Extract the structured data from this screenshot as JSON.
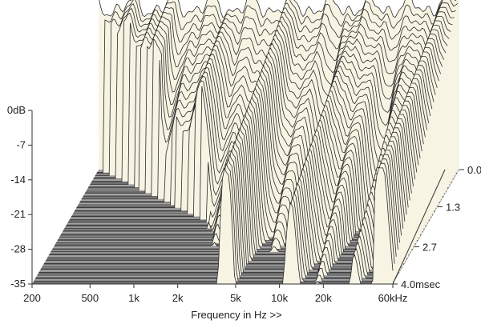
{
  "chart_data": {
    "type": "waterfall",
    "y_axis": {
      "unit": "dB",
      "ticks": [
        "0dB",
        "-7",
        "-14",
        "-21",
        "-28",
        "-35"
      ],
      "range": [
        -35,
        0
      ]
    },
    "x_axis": {
      "label": "Frequency in Hz >>",
      "ticks": [
        "200",
        "500",
        "1k",
        "2k",
        "5k",
        "10k",
        "20k",
        "60kHz"
      ],
      "tick_values_hz": [
        200,
        500,
        1000,
        2000,
        5000,
        10000,
        20000,
        60000
      ],
      "scale": "log",
      "range_hz": [
        200,
        60000
      ]
    },
    "time_axis": {
      "ticks": [
        "0.0",
        "1.3",
        "2.7",
        "4.0msec"
      ],
      "tick_values_ms": [
        0.0,
        1.3,
        2.7,
        4.0
      ],
      "range_ms": [
        0,
        4.0
      ]
    },
    "slice_count": 40,
    "colors": {
      "surface": "#f7f4e3",
      "line": "#2a2a2a",
      "floor_dark": "#6c6c6c",
      "floor_light": "#a3a3a3",
      "axis": "#333333"
    }
  }
}
